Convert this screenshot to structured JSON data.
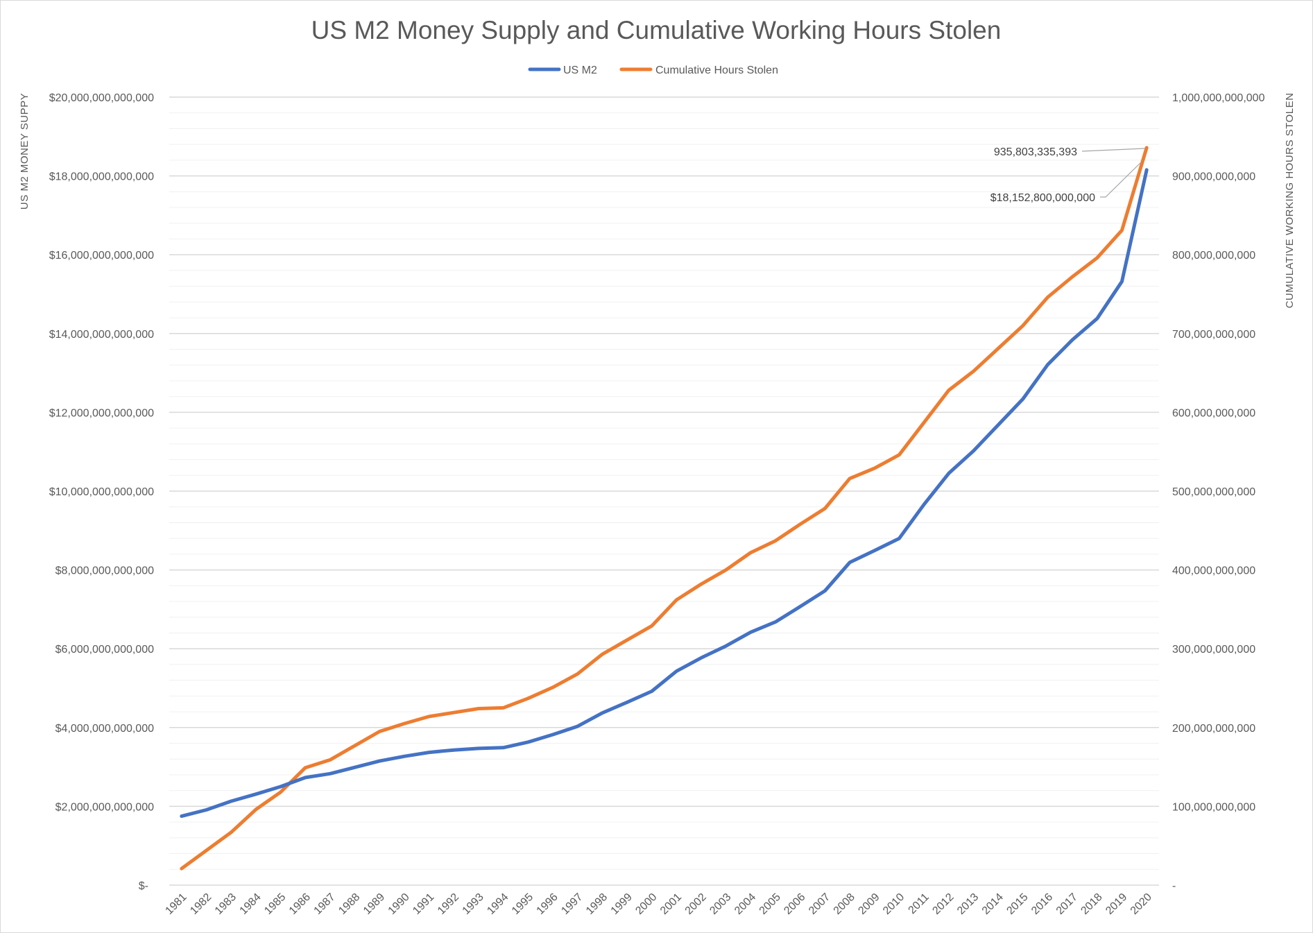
{
  "chart_data": {
    "type": "line",
    "title": "US M2 Money Supply and Cumulative Working Hours Stolen",
    "xlabel": "",
    "ylabel": "US M2 MONEY SUPPY",
    "y2label": "CUMULATIVE WORKING HOURS STOLEN",
    "ylim": [
      0,
      20000000000000
    ],
    "y2lim": [
      0,
      1000000000000
    ],
    "grid": true,
    "legend_position": "top",
    "categories": [
      "1981",
      "1982",
      "1983",
      "1984",
      "1985",
      "1986",
      "1987",
      "1988",
      "1989",
      "1990",
      "1991",
      "1992",
      "1993",
      "1994",
      "1995",
      "1996",
      "1997",
      "1998",
      "1999",
      "2000",
      "2001",
      "2002",
      "2003",
      "2004",
      "2005",
      "2006",
      "2007",
      "2008",
      "2009",
      "2010",
      "2011",
      "2012",
      "2013",
      "2014",
      "2015",
      "2016",
      "2017",
      "2018",
      "2019",
      "2020"
    ],
    "y_ticks": [
      "$-",
      "$2,000,000,000,000",
      "$4,000,000,000,000",
      "$6,000,000,000,000",
      "$8,000,000,000,000",
      "$10,000,000,000,000",
      "$12,000,000,000,000",
      "$14,000,000,000,000",
      "$16,000,000,000,000",
      "$18,000,000,000,000",
      "$20,000,000,000,000"
    ],
    "y2_ticks": [
      "-",
      "100,000,000,000",
      "200,000,000,000",
      "300,000,000,000",
      "400,000,000,000",
      "500,000,000,000",
      "600,000,000,000",
      "700,000,000,000",
      "800,000,000,000",
      "900,000,000,000",
      "1,000,000,000,000"
    ],
    "series": [
      {
        "name": "US M2",
        "axis": "left",
        "color": "#4472C4",
        "values_trillions": [
          1.75,
          1.91,
          2.13,
          2.31,
          2.5,
          2.73,
          2.83,
          2.99,
          3.15,
          3.27,
          3.37,
          3.43,
          3.47,
          3.49,
          3.63,
          3.82,
          4.03,
          4.37,
          4.64,
          4.92,
          5.43,
          5.77,
          6.07,
          6.42,
          6.68,
          7.07,
          7.47,
          8.19,
          8.49,
          8.8,
          9.66,
          10.45,
          11.02,
          11.68,
          12.34,
          13.21,
          13.84,
          14.38,
          15.32,
          18.1528
        ]
      },
      {
        "name": "Cumulative Hours Stolen",
        "axis": "right",
        "color": "#ED7D31",
        "values_billions": [
          21,
          44,
          67,
          96,
          118,
          149,
          159,
          177,
          195,
          205,
          214,
          219,
          224,
          225,
          237,
          251,
          268,
          293,
          311,
          329,
          362,
          382,
          400,
          422,
          437,
          458,
          478,
          516,
          529,
          546,
          587,
          628,
          652,
          681,
          710,
          746,
          772,
          796,
          831,
          935.8
        ]
      }
    ],
    "annotations": {
      "hours_last": "935,803,335,393",
      "m2_last": "$18,152,800,000,000"
    }
  }
}
